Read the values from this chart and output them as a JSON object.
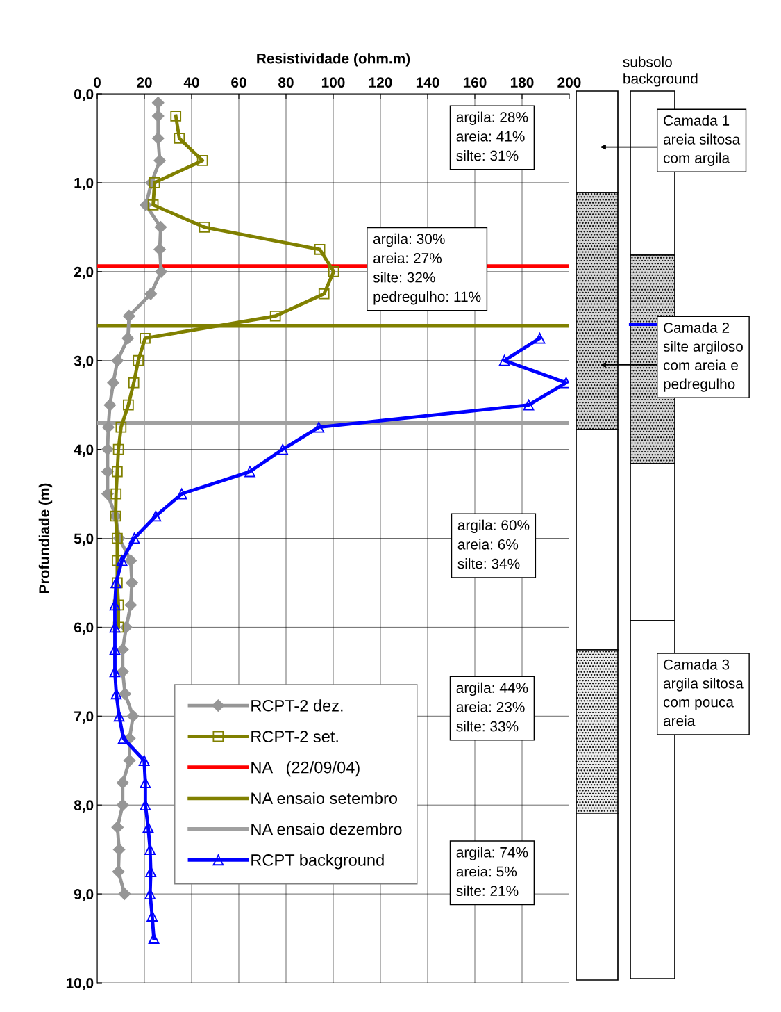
{
  "chart_data": [
    {
      "type": "line",
      "xlabel": "Resistividade (ohm.m)",
      "ylabel": "Profundiade (m)",
      "xlim": [
        0,
        200
      ],
      "xticks": [
        0,
        20,
        40,
        60,
        80,
        100,
        120,
        140,
        160,
        180,
        200
      ],
      "ylim": [
        10,
        0
      ],
      "yticks": [
        {
          "value": 0,
          "label": "0,0"
        },
        {
          "value": 1,
          "label": "1,0"
        },
        {
          "value": 2,
          "label": "2,0"
        },
        {
          "value": 3,
          "label": "3,0"
        },
        {
          "value": 4,
          "label": "4,0"
        },
        {
          "value": 5,
          "label": "5,0"
        },
        {
          "value": 6,
          "label": "6,0"
        },
        {
          "value": 7,
          "label": "7,0"
        },
        {
          "value": 8,
          "label": "8,0"
        },
        {
          "value": 9,
          "label": "9,0"
        },
        {
          "value": 10,
          "label": "10,0"
        }
      ],
      "grid": true,
      "legend": "bottom left",
      "line_style": "solid",
      "series": [
        {
          "name": "RCPT-2 dez.",
          "color": "#969696",
          "marker": "diamond",
          "values": [
            0.1,
            0.25,
            0.5,
            0.75,
            1.0,
            1.25,
            1.5,
            1.75,
            2.0,
            2.25,
            2.5,
            2.75,
            3.0,
            3.25,
            3.5,
            3.75,
            4.0,
            4.25,
            4.5,
            4.75,
            5.0,
            5.25,
            5.5,
            5.75,
            6.0,
            6.25,
            6.5,
            6.75,
            7.0,
            7.25,
            7.5,
            7.75,
            8.0,
            8.25,
            8.5,
            8.75,
            9.0
          ],
          "x": [
            25.8,
            25.8,
            25.8,
            26.5,
            23.0,
            20.6,
            26.9,
            26.5,
            27.1,
            22.7,
            13.5,
            13.0,
            8.6,
            6.8,
            5.4,
            4.7,
            4.4,
            4.4,
            4.4,
            7.8,
            9.3,
            14.2,
            14.7,
            14.2,
            12.3,
            10.8,
            10.8,
            11.8,
            15.2,
            13.7,
            13.7,
            10.8,
            10.8,
            8.6,
            9.3,
            9.0,
            11.6
          ]
        },
        {
          "name": "RCPT-2 set.",
          "color": "#808000",
          "marker": "square",
          "values": [
            0.25,
            0.5,
            0.75,
            1.0,
            1.25,
            1.5,
            1.75,
            2.0,
            2.25,
            2.5,
            2.75,
            3.0,
            3.25,
            3.5,
            3.75,
            4.0,
            4.25,
            4.5,
            4.75,
            5.0,
            5.25,
            5.5,
            5.75,
            6.0
          ],
          "x": [
            33.3,
            34.8,
            44.6,
            24.3,
            23.7,
            45.4,
            94.3,
            100.2,
            96.1,
            75.5,
            20.3,
            17.4,
            15.5,
            13.2,
            10.1,
            9.0,
            8.5,
            8.0,
            7.8,
            8.5,
            8.5,
            8.5,
            9.0,
            9.0
          ]
        },
        {
          "name": "RCPT background",
          "color": "#0000ff",
          "marker": "triangle",
          "values": [
            2.75,
            3.0,
            3.25,
            3.5,
            3.75,
            4.0,
            4.25,
            4.5,
            4.75,
            5.0,
            5.25,
            5.5,
            5.75,
            6.0,
            6.25,
            6.5,
            6.75,
            7.0,
            7.25,
            7.5,
            7.75,
            8.0,
            8.25,
            8.5,
            8.75,
            9.0,
            9.25,
            9.5
          ],
          "x": [
            187.5,
            172.5,
            198.7,
            182.8,
            93.9,
            78.6,
            64.7,
            35.8,
            24.8,
            15.7,
            10.5,
            8.0,
            7.5,
            7.5,
            7.5,
            7.5,
            8.1,
            9.3,
            11.1,
            19.9,
            20.4,
            20.4,
            21.6,
            22.4,
            22.7,
            22.4,
            23.3,
            24.0
          ]
        }
      ],
      "ref_lines": [
        {
          "axis": "y",
          "value": 1.94,
          "label": "NA   (22/09/04)",
          "color": "#ff0000"
        },
        {
          "axis": "y",
          "value": 2.61,
          "label": "NA ensaio setembro",
          "color": "#808000"
        },
        {
          "axis": "y",
          "value": 3.7,
          "label": "NA ensaio dezembro",
          "color": "#a0a0a0"
        }
      ],
      "annotations": [
        "argila: 28%\nareia: 41%\nsilte: 31%",
        "argila: 30%\nareia: 27%\nsilte: 32%\npedregulho: 11%",
        "argila: 60%\nareia: 6%\nsilte: 34%",
        "argila: 44%\nareia: 23%\nsilte: 33%",
        "argila: 74%\nareia: 5%\nsilte: 21%"
      ]
    },
    {
      "type": "other",
      "title": "subsolo\nbackground",
      "annotations": [
        "Camada 1\nareia siltosa\ncom argila",
        "Camada 2\nsilte argiloso\ncom areia e\npedregulho",
        "Camada 3\nargila siltosa\ncom pouca\nareia"
      ]
    }
  ]
}
